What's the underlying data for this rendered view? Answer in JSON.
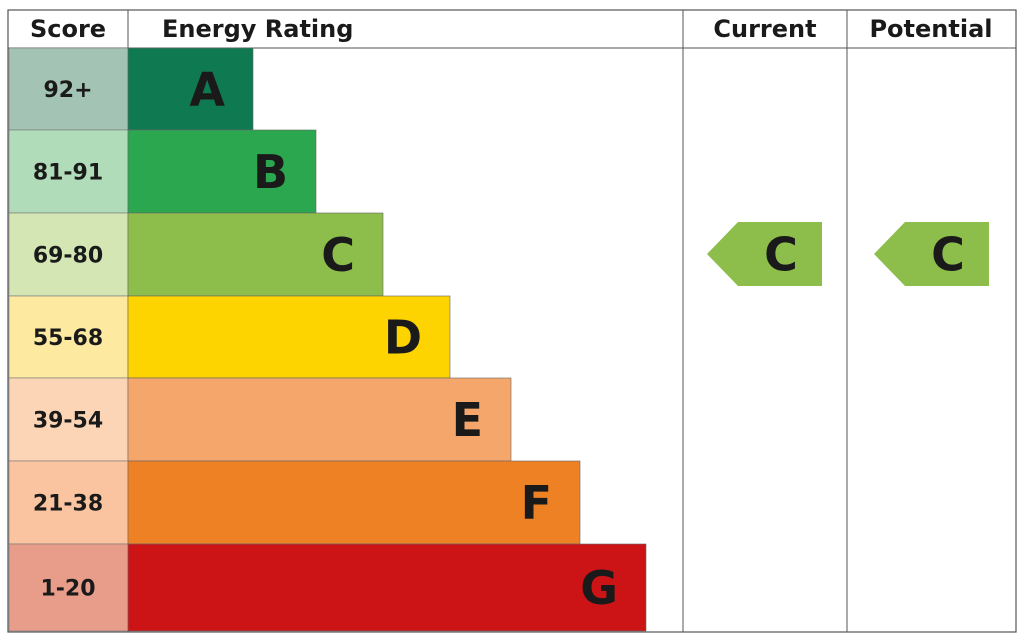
{
  "header": {
    "score": "Score",
    "rating": "Energy Rating",
    "current": "Current",
    "potential": "Potential"
  },
  "rows": [
    {
      "score": "92+",
      "band": "A",
      "color": "#0f7a52",
      "tint": "#a3c3b4"
    },
    {
      "score": "81-91",
      "band": "B",
      "color": "#2aa74f",
      "tint": "#b1dcb9"
    },
    {
      "score": "69-80",
      "band": "C",
      "color": "#8dbd4a",
      "tint": "#d3e6b3"
    },
    {
      "score": "55-68",
      "band": "D",
      "color": "#fdd300",
      "tint": "#fde9a0"
    },
    {
      "score": "39-54",
      "band": "E",
      "color": "#f5a76b",
      "tint": "#fbd5b5"
    },
    {
      "score": "21-38",
      "band": "F",
      "color": "#ee8124",
      "tint": "#fbc4a0"
    },
    {
      "score": "1-20",
      "band": "G",
      "color": "#cc1417",
      "tint": "#e89c8a"
    }
  ],
  "current": {
    "band": "C",
    "color": "#8dbd4a"
  },
  "potential": {
    "band": "C",
    "color": "#8dbd4a"
  }
}
